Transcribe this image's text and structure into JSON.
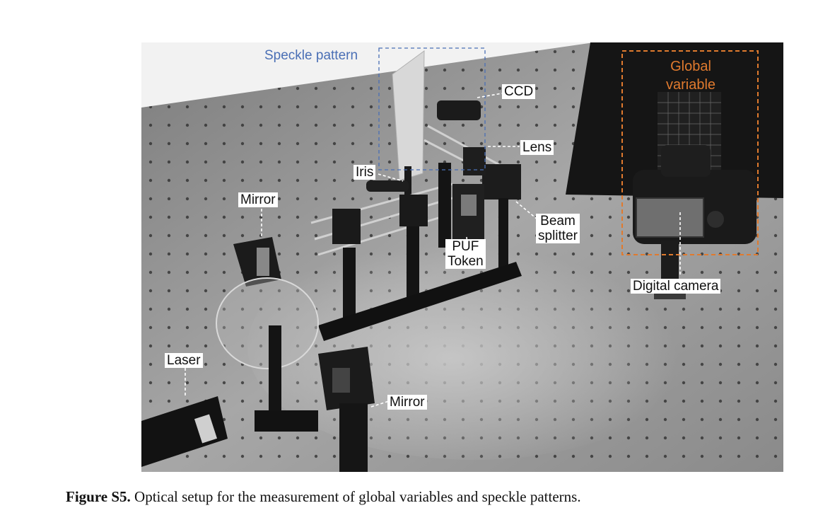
{
  "figure": {
    "labels": {
      "speckle_pattern": "Speckle pattern",
      "global_line1": "Global",
      "global_line2": "variable",
      "ccd": "CCD",
      "lens": "Lens",
      "iris": "Iris",
      "mirror_top": "Mirror",
      "beam_line1": "Beam",
      "beam_line2": "splitter",
      "puf_line1": "PUF",
      "puf_line2": "Token",
      "digital_camera": "Digital camera",
      "laser": "Laser",
      "mirror_bottom": "Mirror"
    },
    "colors": {
      "speckle_box": "#4a6fb5",
      "global_box": "#e07a2e",
      "table": "#8f8f8f"
    }
  },
  "caption": {
    "label": "Figure S5.",
    "text": " Optical setup for the measurement of global variables and speckle patterns."
  }
}
